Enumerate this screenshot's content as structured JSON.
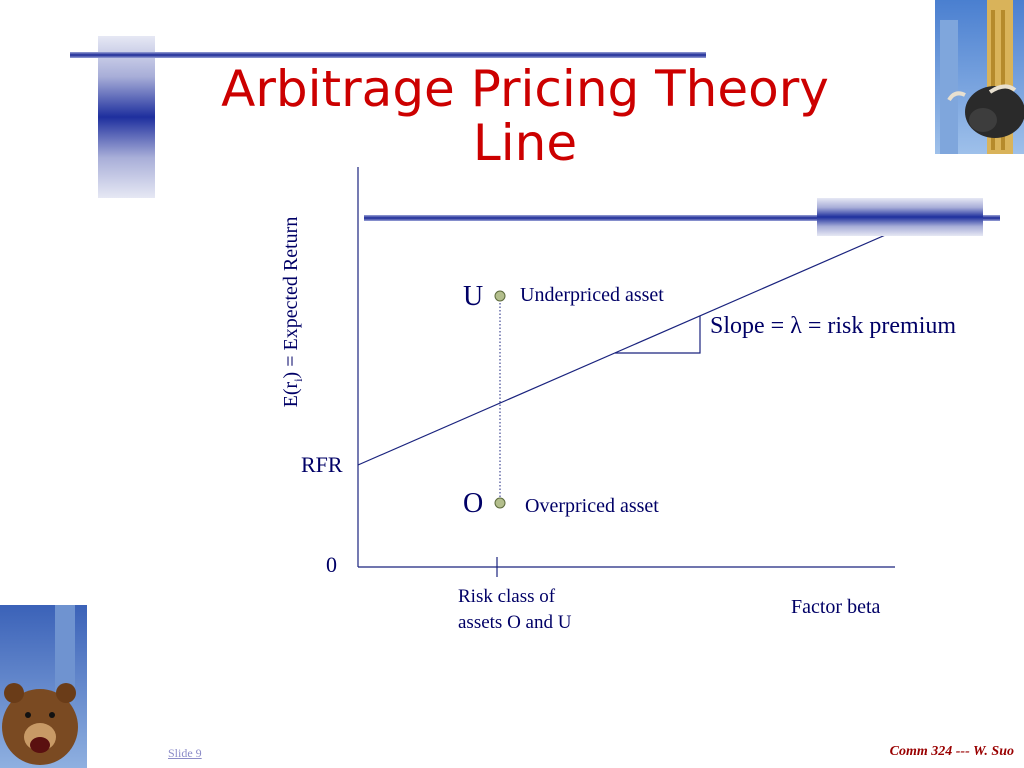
{
  "slide": {
    "title_line1": "Arbitrage Pricing Theory",
    "title_line2": "Line",
    "footer_slide": "Slide 9",
    "footer_credit": "Comm 324 --- W. Suo"
  },
  "diagram": {
    "y_axis_label": {
      "prefix": "E(r",
      "subscript": "i",
      "suffix": ") = Expected Return"
    },
    "x_axis_label": "Factor beta",
    "origin_label": "0",
    "rfr_label": "RFR",
    "point_u": {
      "letter": "U",
      "label": "Underpriced asset"
    },
    "point_o": {
      "letter": "O",
      "label": "Overpriced asset"
    },
    "slope_label": "Slope = λ = risk premium",
    "risk_class_line1": "Risk class of",
    "risk_class_line2": "assets O and U"
  },
  "colors": {
    "title": "#cc0000",
    "text": "#000066",
    "line": "#1a237e",
    "point_fill": "#b3be8c",
    "footer_credit": "#990000"
  },
  "images": {
    "top_right": "bull-and-skyscrapers",
    "bottom_left": "bear-and-skyscrapers"
  }
}
